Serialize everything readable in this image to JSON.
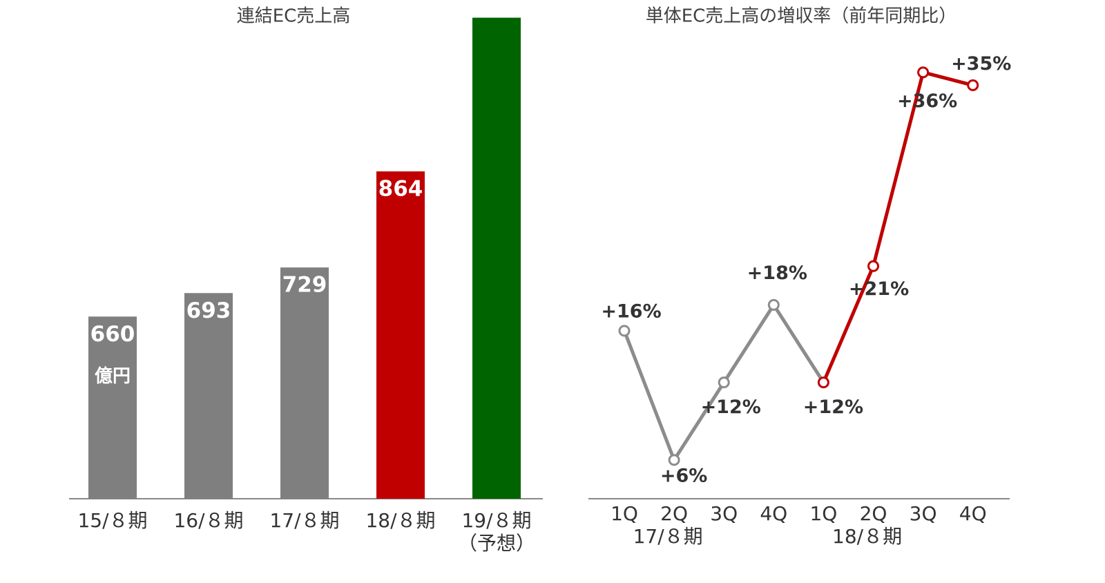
{
  "chart_data": [
    {
      "type": "bar",
      "title": "連結EC売上高",
      "categories": [
        "15/８期",
        "16/８期",
        "17/８期",
        "18/８期",
        "19/８期"
      ],
      "category_notes": [
        null,
        null,
        null,
        null,
        "（予想）"
      ],
      "values": [
        660,
        693,
        729,
        864,
        1080
      ],
      "value_labels": [
        "660",
        "693",
        "729",
        "864",
        null
      ],
      "colors": [
        "#7f7f7f",
        "#7f7f7f",
        "#7f7f7f",
        "#c00000",
        "#006400"
      ],
      "unit": "億円",
      "ylim": [
        404,
        1100
      ]
    },
    {
      "type": "line",
      "title": "単体EC売上高の増収率（前年同期比）",
      "categories": [
        "1Q",
        "2Q",
        "3Q",
        "4Q",
        "1Q",
        "2Q",
        "3Q",
        "4Q"
      ],
      "groups": [
        {
          "label": "17/８期",
          "span": [
            0,
            3
          ]
        },
        {
          "label": "18/８期",
          "span": [
            4,
            7
          ]
        }
      ],
      "values": [
        16,
        6,
        12,
        18,
        12,
        21,
        36,
        35
      ],
      "value_labels": [
        "+16%",
        "+6%",
        "+12%",
        "+18%",
        "+12%",
        "+21%",
        "+36%",
        "+35%"
      ],
      "colors": [
        "#8c8c8c",
        "#8c8c8c",
        "#8c8c8c",
        "#8c8c8c",
        "#c00000",
        "#c00000",
        "#c00000",
        "#c00000"
      ],
      "ylim": [
        3,
        37
      ]
    }
  ]
}
